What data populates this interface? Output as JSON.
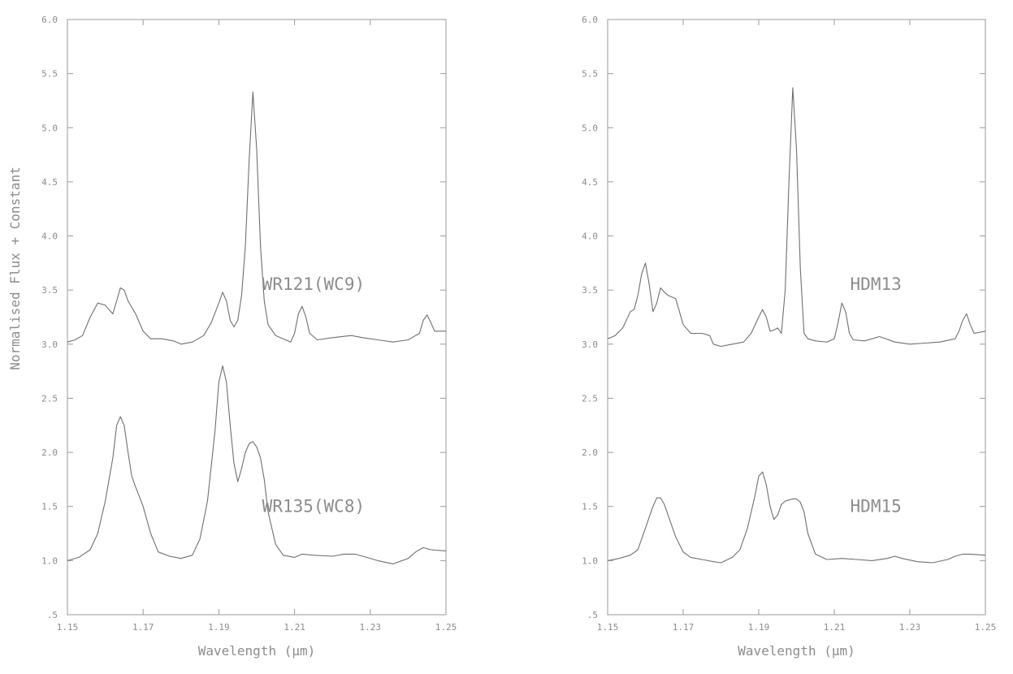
{
  "chart_data": [
    {
      "type": "line",
      "xlabel": "Wavelength (μm)",
      "ylabel": "Normalised Flux + Constant",
      "xlim": [
        1.15,
        1.25
      ],
      "ylim": [
        0.5,
        6.0
      ],
      "x_ticks": [
        1.15,
        1.17,
        1.19,
        1.21,
        1.23,
        1.25
      ],
      "x_tick_labels": [
        "1.15",
        "1.17",
        "1.19",
        "1.21",
        "1.23",
        "1.25"
      ],
      "y_ticks": [
        0.5,
        1.0,
        1.5,
        2.0,
        2.5,
        3.0,
        3.5,
        4.0,
        4.5,
        5.0,
        5.5,
        6.0
      ],
      "y_tick_labels": [
        ".5",
        "1.0",
        "1.5",
        "2.0",
        "2.5",
        "3.0",
        "3.5",
        "4.0",
        "4.5",
        "5.0",
        "5.5",
        "6.0"
      ],
      "grid": false,
      "series": [
        {
          "name": "WR121(WC9)",
          "label_at": [
            1.215,
            3.5
          ],
          "x": [
            1.15,
            1.152,
            1.154,
            1.156,
            1.158,
            1.16,
            1.162,
            1.163,
            1.164,
            1.165,
            1.166,
            1.168,
            1.17,
            1.172,
            1.175,
            1.178,
            1.18,
            1.183,
            1.186,
            1.188,
            1.19,
            1.191,
            1.192,
            1.193,
            1.194,
            1.195,
            1.196,
            1.197,
            1.198,
            1.199,
            1.2,
            1.201,
            1.202,
            1.203,
            1.205,
            1.207,
            1.209,
            1.21,
            1.211,
            1.212,
            1.213,
            1.214,
            1.216,
            1.22,
            1.225,
            1.228,
            1.232,
            1.236,
            1.24,
            1.243,
            1.244,
            1.245,
            1.246,
            1.247,
            1.25
          ],
          "y": [
            3.02,
            3.04,
            3.08,
            3.25,
            3.38,
            3.36,
            3.28,
            3.4,
            3.52,
            3.5,
            3.4,
            3.28,
            3.12,
            3.05,
            3.05,
            3.03,
            3.0,
            3.02,
            3.08,
            3.2,
            3.38,
            3.48,
            3.4,
            3.22,
            3.16,
            3.22,
            3.45,
            3.9,
            4.7,
            5.33,
            4.8,
            3.9,
            3.4,
            3.18,
            3.08,
            3.05,
            3.02,
            3.1,
            3.28,
            3.35,
            3.25,
            3.1,
            3.04,
            3.06,
            3.08,
            3.06,
            3.04,
            3.02,
            3.04,
            3.1,
            3.22,
            3.27,
            3.2,
            3.12,
            3.12
          ]
        },
        {
          "name": "WR135(WC8)",
          "label_at": [
            1.215,
            1.45
          ],
          "x": [
            1.15,
            1.153,
            1.156,
            1.158,
            1.16,
            1.162,
            1.163,
            1.164,
            1.165,
            1.166,
            1.167,
            1.168,
            1.17,
            1.172,
            1.174,
            1.177,
            1.18,
            1.183,
            1.185,
            1.187,
            1.189,
            1.19,
            1.191,
            1.192,
            1.193,
            1.194,
            1.195,
            1.196,
            1.197,
            1.198,
            1.199,
            1.2,
            1.201,
            1.202,
            1.203,
            1.205,
            1.207,
            1.21,
            1.212,
            1.215,
            1.22,
            1.223,
            1.226,
            1.228,
            1.232,
            1.236,
            1.24,
            1.242,
            1.244,
            1.246,
            1.25
          ],
          "y": [
            1.0,
            1.03,
            1.1,
            1.25,
            1.55,
            1.95,
            2.25,
            2.33,
            2.25,
            2.0,
            1.78,
            1.68,
            1.5,
            1.25,
            1.08,
            1.04,
            1.02,
            1.05,
            1.2,
            1.55,
            2.2,
            2.65,
            2.8,
            2.65,
            2.25,
            1.9,
            1.73,
            1.85,
            2.0,
            2.08,
            2.1,
            2.05,
            1.95,
            1.75,
            1.45,
            1.15,
            1.05,
            1.03,
            1.06,
            1.05,
            1.04,
            1.06,
            1.06,
            1.04,
            1.0,
            0.97,
            1.02,
            1.08,
            1.12,
            1.1,
            1.09
          ]
        }
      ]
    },
    {
      "type": "line",
      "xlabel": "Wavelength (μm)",
      "ylabel": "",
      "xlim": [
        1.15,
        1.25
      ],
      "ylim": [
        0.5,
        6.0
      ],
      "x_ticks": [
        1.15,
        1.17,
        1.19,
        1.21,
        1.23,
        1.25
      ],
      "x_tick_labels": [
        "1.15",
        "1.17",
        "1.19",
        "1.21",
        "1.23",
        "1.25"
      ],
      "y_ticks": [
        0.5,
        1.0,
        1.5,
        2.0,
        2.5,
        3.0,
        3.5,
        4.0,
        4.5,
        5.0,
        5.5,
        6.0
      ],
      "y_tick_labels": [
        ".5",
        "1.0",
        "1.5",
        "2.0",
        "2.5",
        "3.0",
        "3.5",
        "4.0",
        "4.5",
        "5.0",
        "5.5",
        "6.0"
      ],
      "grid": false,
      "series": [
        {
          "name": "HDM13",
          "label_at": [
            1.221,
            3.5
          ],
          "x": [
            1.15,
            1.152,
            1.154,
            1.156,
            1.157,
            1.158,
            1.159,
            1.16,
            1.161,
            1.162,
            1.163,
            1.164,
            1.165,
            1.166,
            1.168,
            1.169,
            1.17,
            1.172,
            1.175,
            1.177,
            1.178,
            1.18,
            1.183,
            1.186,
            1.188,
            1.19,
            1.191,
            1.192,
            1.193,
            1.194,
            1.195,
            1.196,
            1.197,
            1.198,
            1.199,
            1.2,
            1.201,
            1.202,
            1.203,
            1.205,
            1.208,
            1.21,
            1.211,
            1.212,
            1.213,
            1.214,
            1.215,
            1.218,
            1.222,
            1.226,
            1.23,
            1.234,
            1.238,
            1.242,
            1.243,
            1.244,
            1.245,
            1.246,
            1.247,
            1.25
          ],
          "y": [
            3.05,
            3.08,
            3.15,
            3.3,
            3.32,
            3.45,
            3.65,
            3.75,
            3.55,
            3.3,
            3.38,
            3.52,
            3.48,
            3.45,
            3.42,
            3.3,
            3.18,
            3.1,
            3.1,
            3.08,
            3.0,
            2.98,
            3.0,
            3.02,
            3.1,
            3.25,
            3.32,
            3.25,
            3.12,
            3.13,
            3.15,
            3.1,
            3.5,
            4.5,
            5.37,
            4.8,
            3.7,
            3.1,
            3.05,
            3.03,
            3.02,
            3.05,
            3.2,
            3.38,
            3.3,
            3.1,
            3.04,
            3.03,
            3.07,
            3.02,
            3.0,
            3.01,
            3.02,
            3.05,
            3.12,
            3.22,
            3.28,
            3.18,
            3.1,
            3.12
          ]
        },
        {
          "name": "HDM15",
          "label_at": [
            1.221,
            1.45
          ],
          "x": [
            1.15,
            1.153,
            1.156,
            1.158,
            1.16,
            1.162,
            1.163,
            1.164,
            1.165,
            1.166,
            1.168,
            1.17,
            1.172,
            1.175,
            1.178,
            1.18,
            1.183,
            1.185,
            1.187,
            1.189,
            1.19,
            1.191,
            1.192,
            1.193,
            1.194,
            1.195,
            1.196,
            1.197,
            1.198,
            1.199,
            1.2,
            1.201,
            1.202,
            1.203,
            1.205,
            1.208,
            1.212,
            1.216,
            1.22,
            1.224,
            1.226,
            1.228,
            1.232,
            1.236,
            1.24,
            1.242,
            1.244,
            1.246,
            1.25
          ],
          "y": [
            1.0,
            1.02,
            1.05,
            1.1,
            1.3,
            1.5,
            1.58,
            1.58,
            1.52,
            1.42,
            1.22,
            1.08,
            1.03,
            1.01,
            0.99,
            0.98,
            1.03,
            1.1,
            1.3,
            1.6,
            1.78,
            1.82,
            1.7,
            1.5,
            1.38,
            1.42,
            1.52,
            1.55,
            1.56,
            1.57,
            1.57,
            1.54,
            1.45,
            1.25,
            1.06,
            1.01,
            1.02,
            1.01,
            1.0,
            1.02,
            1.04,
            1.02,
            0.99,
            0.98,
            1.01,
            1.04,
            1.06,
            1.06,
            1.05
          ]
        }
      ]
    }
  ],
  "style": {
    "axis_color": "#9a9a9a",
    "line_color": "#6f6f6f",
    "text_color": "#8c8c8c",
    "background": "#ffffff"
  }
}
